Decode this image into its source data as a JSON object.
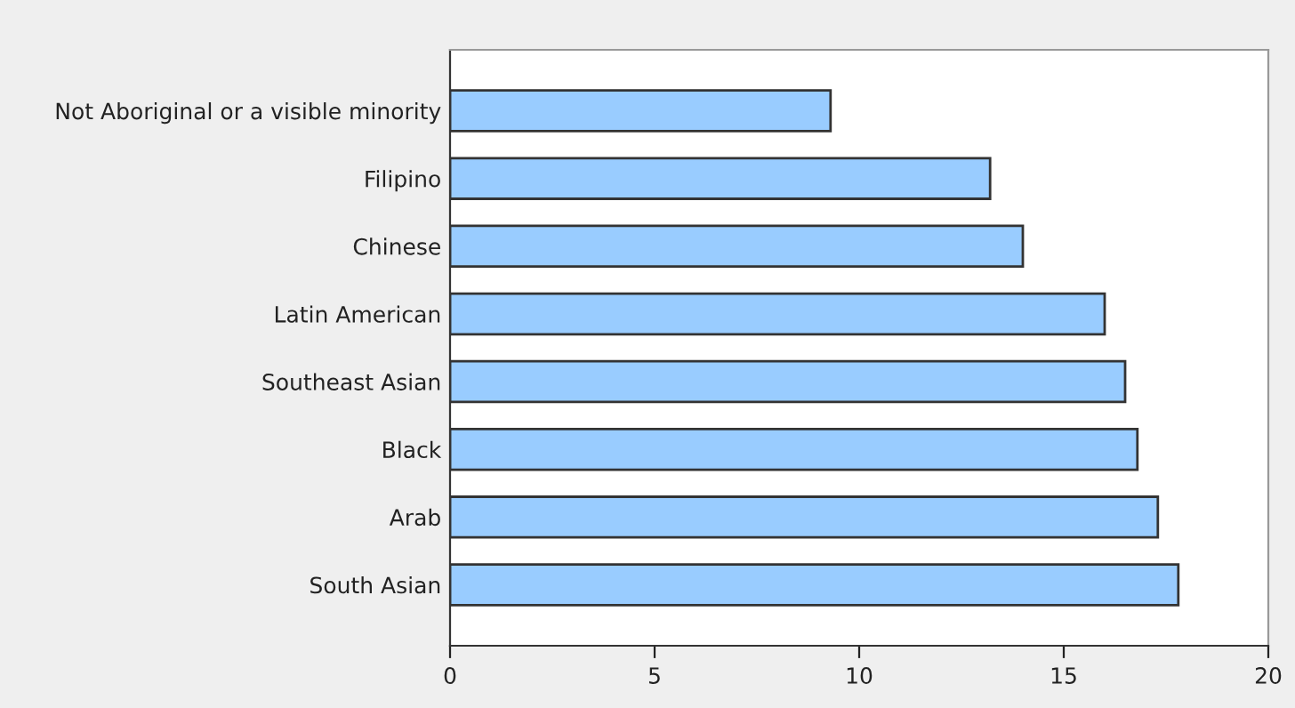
{
  "chart_data": {
    "type": "bar",
    "orientation": "horizontal",
    "categories": [
      "Not Aboriginal or a visible minority",
      "Filipino",
      "Chinese",
      "Latin American",
      "Southeast Asian",
      "Black",
      "Arab",
      "South Asian"
    ],
    "values": [
      9.3,
      13.2,
      14.0,
      16.0,
      16.5,
      16.8,
      17.3,
      17.8
    ],
    "color": "#99ccff",
    "xlim": [
      0,
      20
    ],
    "xticks": [
      0,
      5,
      10,
      15,
      20
    ],
    "grid": false,
    "legend": false
  }
}
